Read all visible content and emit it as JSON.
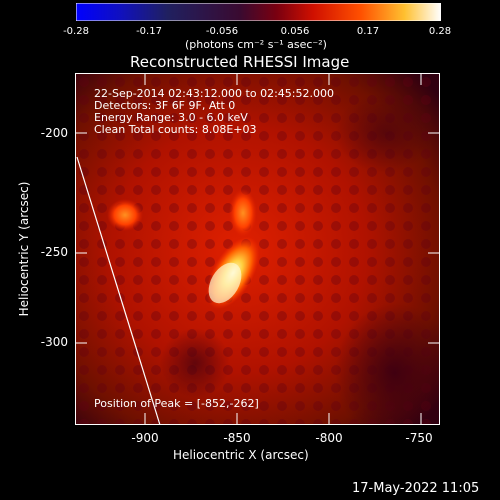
{
  "colorbar": {
    "ticks": [
      "-0.28",
      "-0.17",
      "-0.056",
      "0.056",
      "0.17",
      "0.28"
    ],
    "units": "(photons cm⁻² s⁻¹ asec⁻²)"
  },
  "plot": {
    "title": "Reconstructed RHESSI Image",
    "info_lines": [
      "22-Sep-2014 02:43:12.000 to 02:45:52.000",
      "Detectors: 3F 6F 9F, Att 0",
      "Energy Range: 3.0 - 6.0 keV",
      "Clean    Total counts: 8.08E+03"
    ],
    "peak_text": "Position of Peak = [-852,-262]",
    "xlabel": "Heliocentric X (arcsec)",
    "ylabel": "Heliocentric Y (arcsec)",
    "xticks": [
      "-900",
      "-850",
      "-800",
      "-750"
    ],
    "yticks": [
      "-200",
      "-250",
      "-300"
    ],
    "timestamp": "17-May-2022 11:05"
  },
  "chart_data": {
    "type": "heatmap",
    "title": "Reconstructed RHESSI Image",
    "xlabel": "Heliocentric X (arcsec)",
    "ylabel": "Heliocentric Y (arcsec)",
    "xlim": [
      -938,
      -745
    ],
    "ylim": [
      -345,
      -165
    ],
    "colorbar_range": [
      -0.28,
      0.28
    ],
    "peak": [
      -852,
      -262
    ],
    "colormap": "hot"
  }
}
